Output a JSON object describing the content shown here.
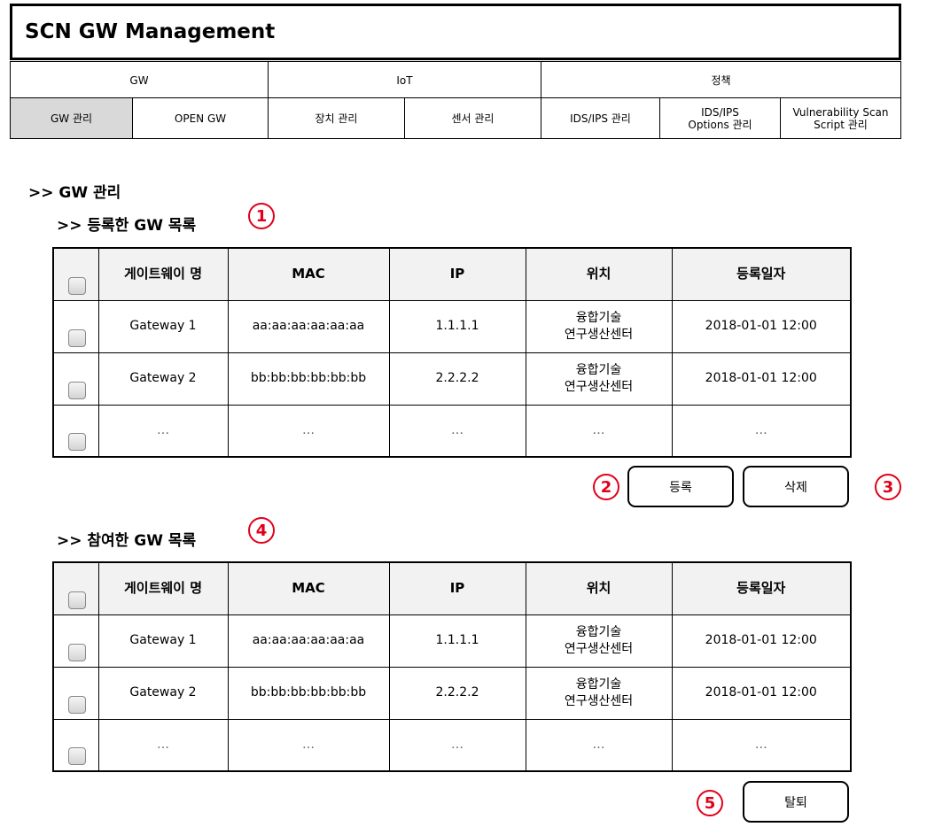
{
  "app": {
    "title": "SCN GW Management"
  },
  "nav": {
    "top": [
      "GW",
      "IoT",
      "정책"
    ],
    "sub": [
      {
        "label": "GW 관리",
        "active": true
      },
      {
        "label": "OPEN GW",
        "active": false
      },
      {
        "label": "장치 관리",
        "active": false
      },
      {
        "label": "센서 관리",
        "active": false
      },
      {
        "label": "IDS/IPS 관리",
        "active": false
      },
      {
        "label": "IDS/IPS\nOptions 관리",
        "active": false
      },
      {
        "label": "Vulnerability Scan\nScript 관리",
        "active": false
      }
    ]
  },
  "page": {
    "heading": ">> GW 관리"
  },
  "registered": {
    "heading": ">> 등록한 GW 목록",
    "marker": "1",
    "columns": [
      "게이트웨이 명",
      "MAC",
      "IP",
      "위치",
      "등록일자"
    ],
    "rows": [
      {
        "name": "Gateway  1",
        "mac": "aa:aa:aa:aa:aa:aa",
        "ip": "1.1.1.1",
        "location": "융합기술\n연구생산센터",
        "date": "2018-01-01  12:00"
      },
      {
        "name": "Gateway  2",
        "mac": "bb:bb:bb:bb:bb:bb",
        "ip": "2.2.2.2",
        "location": "융합기술\n연구생산센터",
        "date": "2018-01-01  12:00"
      },
      {
        "name": "…",
        "mac": "…",
        "ip": "…",
        "location": "…",
        "date": "…"
      }
    ],
    "register_button": "등록",
    "register_marker": "2",
    "delete_button": "삭제",
    "delete_marker": "3"
  },
  "joined": {
    "heading": ">> 참여한 GW 목록",
    "marker": "4",
    "columns": [
      "게이트웨이 명",
      "MAC",
      "IP",
      "위치",
      "등록일자"
    ],
    "rows": [
      {
        "name": "Gateway  1",
        "mac": "aa:aa:aa:aa:aa:aa",
        "ip": "1.1.1.1",
        "location": "융합기술\n연구생산센터",
        "date": "2018-01-01  12:00"
      },
      {
        "name": "Gateway  2",
        "mac": "bb:bb:bb:bb:bb:bb",
        "ip": "2.2.2.2",
        "location": "융합기술\n연구생산센터",
        "date": "2018-01-01  12:00"
      },
      {
        "name": "…",
        "mac": "…",
        "ip": "…",
        "location": "…",
        "date": "…"
      }
    ],
    "leave_button": "탈퇴",
    "leave_marker": "5"
  },
  "colors": {
    "marker": "#e0001a",
    "active_tab": "#d9d9d9",
    "header_bg": "#f2f2f2"
  }
}
